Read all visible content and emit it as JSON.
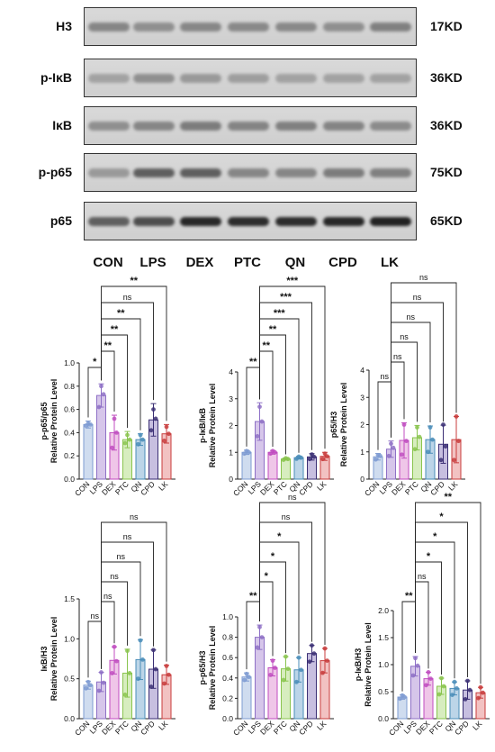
{
  "blots": {
    "rows": [
      {
        "label": "H3",
        "kd": "17KD",
        "intensity": [
          0.35,
          0.3,
          0.34,
          0.33,
          0.33,
          0.3,
          0.38
        ]
      },
      {
        "label": "p-IκB",
        "kd": "36KD",
        "intensity": [
          0.2,
          0.3,
          0.25,
          0.22,
          0.2,
          0.2,
          0.2
        ]
      },
      {
        "label": "IκB",
        "kd": "36KD",
        "intensity": [
          0.3,
          0.35,
          0.4,
          0.36,
          0.38,
          0.36,
          0.32
        ]
      },
      {
        "label": "p-p65",
        "kd": "75KD",
        "intensity": [
          0.25,
          0.55,
          0.55,
          0.35,
          0.35,
          0.4,
          0.38
        ]
      },
      {
        "label": "p65",
        "kd": "65KD",
        "intensity": [
          0.55,
          0.65,
          0.85,
          0.82,
          0.82,
          0.85,
          0.88
        ]
      }
    ],
    "lanes": [
      "CON",
      "LPS",
      "DEX",
      "PTC",
      "QN",
      "CPD",
      "LK"
    ]
  },
  "chart_data": [
    {
      "type": "bar",
      "ylabel": "p-p65/p65\nRelative Protein Level",
      "categories": [
        "CON",
        "LPS",
        "DEX",
        "PTC",
        "QN",
        "CPD",
        "LK"
      ],
      "values": [
        0.47,
        0.72,
        0.4,
        0.34,
        0.34,
        0.51,
        0.39
      ],
      "errors": [
        0.03,
        0.1,
        0.15,
        0.07,
        0.05,
        0.14,
        0.08
      ],
      "points": [
        [
          0.46,
          0.48,
          0.47
        ],
        [
          0.62,
          0.8,
          0.73
        ],
        [
          0.27,
          0.52,
          0.4
        ],
        [
          0.31,
          0.38,
          0.34
        ],
        [
          0.3,
          0.38,
          0.34
        ],
        [
          0.42,
          0.6,
          0.52
        ],
        [
          0.33,
          0.45,
          0.39
        ]
      ],
      "ylim": [
        0,
        1.0
      ],
      "yticks": [
        "0.0",
        "0.2",
        "0.4",
        "0.6",
        "0.8",
        "1.0"
      ],
      "brackets": [
        "*",
        "**",
        "**",
        "**",
        "ns",
        "**"
      ]
    },
    {
      "type": "bar",
      "ylabel": "p-IκB/IκB\nRelative Protein Level",
      "categories": [
        "CON",
        "LPS",
        "DEX",
        "PTC",
        "QN",
        "CPD",
        "LK"
      ],
      "values": [
        1.0,
        2.15,
        1.0,
        0.75,
        0.8,
        0.83,
        0.85
      ],
      "errors": [
        0.08,
        0.7,
        0.07,
        0.04,
        0.05,
        0.12,
        0.15
      ],
      "points": [
        [
          0.95,
          1.05,
          1.0
        ],
        [
          1.6,
          2.7,
          2.15
        ],
        [
          0.95,
          1.05,
          1.0
        ],
        [
          0.72,
          0.78,
          0.75
        ],
        [
          0.76,
          0.84,
          0.8
        ],
        [
          0.75,
          0.92,
          0.83
        ],
        [
          0.75,
          0.95,
          0.85
        ]
      ],
      "ylim": [
        0,
        4
      ],
      "yticks": [
        "0",
        "1",
        "2",
        "3",
        "4"
      ],
      "brackets": [
        "**",
        "**",
        "**",
        "***",
        "***",
        "***"
      ]
    },
    {
      "type": "bar",
      "ylabel": "p65/H3\nRelative Protein Level",
      "categories": [
        "CON",
        "LPS",
        "DEX",
        "PTC",
        "QN",
        "CPD",
        "LK"
      ],
      "values": [
        0.82,
        1.1,
        1.42,
        1.52,
        1.45,
        1.28,
        1.45
      ],
      "errors": [
        0.12,
        0.3,
        0.65,
        0.45,
        0.5,
        0.7,
        0.85
      ],
      "points": [
        [
          0.72,
          0.88,
          0.85
        ],
        [
          0.85,
          1.3,
          1.15
        ],
        [
          0.9,
          2.0,
          1.4
        ],
        [
          1.1,
          1.9,
          1.55
        ],
        [
          1.0,
          1.9,
          1.45
        ],
        [
          0.7,
          2.0,
          1.2
        ],
        [
          0.7,
          2.3,
          1.4
        ]
      ],
      "ylim": [
        0,
        4
      ],
      "yticks": [
        "0",
        "1",
        "2",
        "3",
        "4"
      ],
      "brackets": [
        "ns",
        "ns",
        "ns",
        "ns",
        "ns",
        "ns"
      ]
    },
    {
      "type": "bar",
      "ylabel": "IκB/H3\nRelative Protein Level",
      "categories": [
        "CON",
        "LPS",
        "DEX",
        "PTC",
        "QN",
        "CPD",
        "LK"
      ],
      "values": [
        0.42,
        0.46,
        0.73,
        0.57,
        0.74,
        0.62,
        0.55
      ],
      "errors": [
        0.05,
        0.12,
        0.17,
        0.3,
        0.25,
        0.24,
        0.12
      ],
      "points": [
        [
          0.38,
          0.46,
          0.42
        ],
        [
          0.35,
          0.58,
          0.45
        ],
        [
          0.57,
          0.9,
          0.72
        ],
        [
          0.3,
          0.85,
          0.57
        ],
        [
          0.5,
          0.98,
          0.74
        ],
        [
          0.4,
          0.86,
          0.62
        ],
        [
          0.44,
          0.66,
          0.55
        ]
      ],
      "ylim": [
        0,
        1.5
      ],
      "yticks": [
        "0.0",
        "0.5",
        "1.0",
        "1.5"
      ],
      "brackets": [
        "ns",
        "ns",
        "ns",
        "ns",
        "ns",
        "ns"
      ]
    },
    {
      "type": "bar",
      "ylabel": "p-p65/H3\nRelative Protein Level",
      "categories": [
        "CON",
        "LPS",
        "DEX",
        "PTC",
        "QN",
        "CPD",
        "LK"
      ],
      "values": [
        0.41,
        0.8,
        0.5,
        0.49,
        0.48,
        0.64,
        0.57
      ],
      "errors": [
        0.04,
        0.12,
        0.08,
        0.12,
        0.12,
        0.08,
        0.12
      ],
      "points": [
        [
          0.38,
          0.44,
          0.41
        ],
        [
          0.7,
          0.9,
          0.8
        ],
        [
          0.43,
          0.57,
          0.5
        ],
        [
          0.38,
          0.61,
          0.49
        ],
        [
          0.36,
          0.6,
          0.48
        ],
        [
          0.56,
          0.72,
          0.64
        ],
        [
          0.45,
          0.69,
          0.57
        ]
      ],
      "ylim": [
        0,
        1.0
      ],
      "yticks": [
        "0.0",
        "0.2",
        "0.4",
        "0.6",
        "0.8",
        "1.0"
      ],
      "brackets": [
        "**",
        "*",
        "*",
        "*",
        "ns",
        "ns"
      ]
    },
    {
      "type": "bar",
      "ylabel": "p-IκB/H3\nRelative Protein Level",
      "categories": [
        "CON",
        "LPS",
        "DEX",
        "PTC",
        "QN",
        "CPD",
        "LK"
      ],
      "values": [
        0.4,
        0.97,
        0.74,
        0.6,
        0.56,
        0.53,
        0.48
      ],
      "errors": [
        0.04,
        0.18,
        0.12,
        0.15,
        0.12,
        0.17,
        0.1
      ],
      "points": [
        [
          0.37,
          0.43,
          0.4
        ],
        [
          0.8,
          1.12,
          0.98
        ],
        [
          0.62,
          0.86,
          0.74
        ],
        [
          0.45,
          0.75,
          0.6
        ],
        [
          0.44,
          0.68,
          0.56
        ],
        [
          0.36,
          0.7,
          0.53
        ],
        [
          0.38,
          0.58,
          0.48
        ]
      ],
      "ylim": [
        0,
        2.0
      ],
      "yticks": [
        "0.0",
        "0.5",
        "1.0",
        "1.5",
        "2.0"
      ],
      "brackets": [
        "**",
        "ns",
        "*",
        "*",
        "*",
        "**"
      ]
    }
  ],
  "colors": {
    "fills": [
      "#cfdcef",
      "#d6c6ea",
      "#efc6e8",
      "#d7edbf",
      "#bcd5e8",
      "#c7bfe0",
      "#f2c2c2"
    ],
    "strokes": [
      "#7e9bd2",
      "#8e70c6",
      "#c04cc0",
      "#89c44e",
      "#4a8db8",
      "#3b2f74",
      "#c83c3c"
    ]
  }
}
